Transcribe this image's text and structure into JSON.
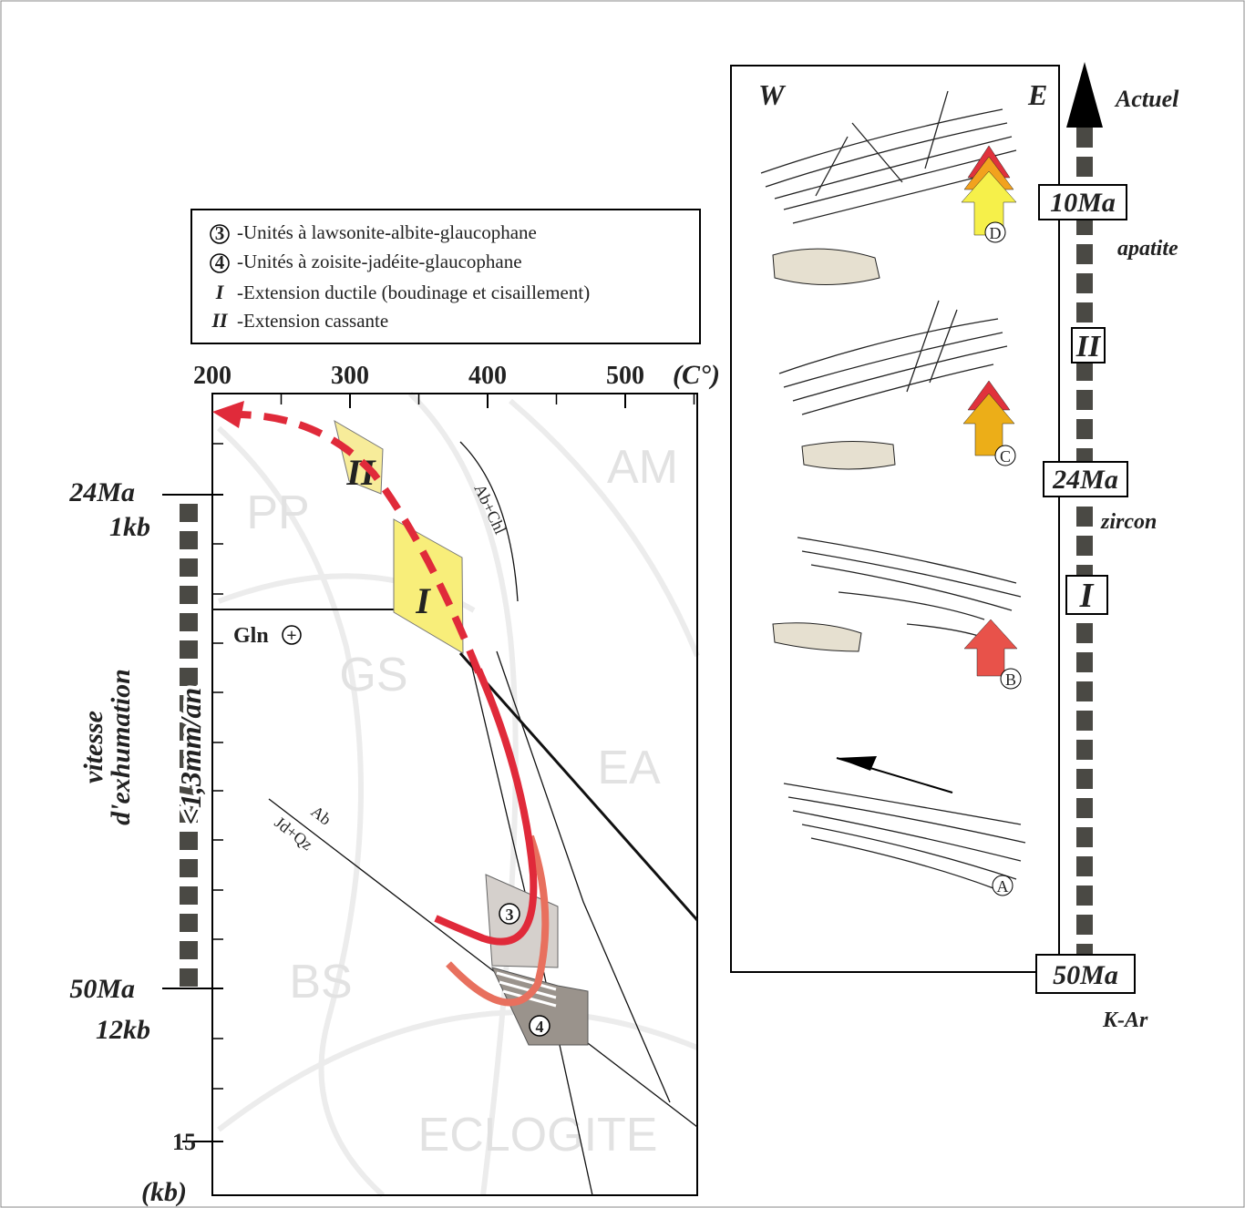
{
  "legend": {
    "items": [
      {
        "symbol": "3",
        "label": "-Unités à lawsonite-albite-glaucophane"
      },
      {
        "symbol": "4",
        "label": "-Unités à zoisite-jadéite-glaucophane"
      },
      {
        "symbol": "I",
        "label": "-Extension ductile (boudinage et cisaillement)"
      },
      {
        "symbol": "II",
        "label": "-Extension cassante"
      }
    ]
  },
  "pt_diagram": {
    "temperature_ticks": [
      200,
      300,
      400,
      500
    ],
    "temperature_unit": "(C°)",
    "pressure_tick": 15,
    "pressure_unit": "(kb)",
    "markers": [
      {
        "age": "24Ma",
        "pressure": "1kb"
      },
      {
        "age": "50Ma",
        "pressure": "12kb"
      }
    ],
    "rate_title": [
      "vitesse",
      "d'exhumation"
    ],
    "rate_value": "<1,3mm/an",
    "facies": [
      "PP",
      "AM",
      "GS",
      "EA",
      "BS",
      "ECLOGITE"
    ],
    "reactions": {
      "ab_chl": "Ab+Chl",
      "ab": "Ab",
      "jd_qz": "Jd+Qz",
      "gln": "Gln",
      "gln_sign": "+"
    },
    "fields": [
      "II",
      "I",
      "3",
      "4"
    ]
  },
  "cross_sections": {
    "west": "W",
    "east": "E",
    "stages": [
      "D",
      "C",
      "B",
      "A"
    ]
  },
  "timeline": {
    "top": "Actuel",
    "boxes": [
      "10Ma",
      "II",
      "24Ma",
      "I",
      "50Ma"
    ],
    "methods": [
      "apatite",
      "zircon",
      "K-Ar"
    ]
  }
}
